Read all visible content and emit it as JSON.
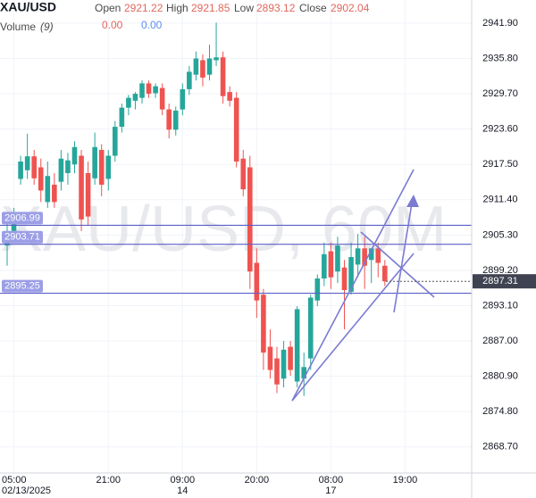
{
  "header": {
    "symbol": "XAU/USD",
    "fields": [
      {
        "label": "Open",
        "value": "2921.22"
      },
      {
        "label": "High",
        "value": "2921.85"
      },
      {
        "label": "Low",
        "value": "2893.12"
      },
      {
        "label": "Close",
        "value": "2902.04"
      }
    ],
    "volume_label": "Volume",
    "volume_param": "(9)",
    "volume_values": [
      "0.00",
      "0.00"
    ]
  },
  "chart_data": {
    "type": "candlestick",
    "watermark": "XAU/USD, 60M",
    "categories": [
      null,
      "05:00",
      null,
      null,
      null,
      null,
      null,
      null,
      null,
      null,
      null,
      null,
      null,
      null,
      null,
      "21:00",
      null,
      null,
      null,
      null,
      null,
      null,
      null,
      null,
      null,
      null,
      "09:00",
      null,
      null,
      null,
      null,
      null,
      null,
      null,
      null,
      null,
      null,
      "20:00",
      null,
      null,
      null,
      null,
      null,
      null,
      null,
      null,
      null,
      null,
      "08:00",
      null,
      null,
      null,
      null,
      null,
      null,
      null,
      null,
      null,
      null,
      "19:00"
    ],
    "date_labels": [
      null,
      "02/13/2025",
      null,
      null,
      null,
      null,
      null,
      null,
      null,
      null,
      null,
      null,
      null,
      null,
      null,
      null,
      null,
      null,
      null,
      null,
      null,
      null,
      null,
      null,
      null,
      null,
      "14",
      null,
      null,
      null,
      null,
      null,
      null,
      null,
      null,
      null,
      null,
      null,
      null,
      null,
      null,
      null,
      null,
      null,
      null,
      null,
      null,
      null,
      "17",
      null,
      null,
      null,
      null,
      null,
      null,
      null,
      null,
      null,
      null,
      null
    ],
    "open": [
      2903.5,
      2906,
      2915,
      2916.5,
      2918.9,
      2917,
      2911,
      2914,
      2914.5,
      2916,
      2917.5,
      2919,
      2916,
      2915.1,
      2920,
      2915,
      2919,
      2924,
      2927.3,
      2928.5,
      2929,
      2931.5,
      2929.8,
      2930.7,
      2927,
      2923.5,
      2927,
      2930.5,
      2933,
      2935.5,
      2933,
      2935.5,
      2936,
      2930,
      2929,
      2918.5,
      2917,
      2900.5,
      2895,
      2886,
      2884,
      2880.5,
      2886,
      2880,
      2880.5,
      2884,
      2894,
      2897.8,
      2902.5,
      2899,
      2899.7,
      2895.5,
      2900.2,
      2903,
      2901,
      2903,
      2900,
      null,
      null,
      null
    ],
    "high": [
      2907.4,
      2910,
      2919,
      2922.8,
      2920,
      2918.5,
      2918,
      2916,
      2920,
      2919.5,
      2921.5,
      2920,
      2918,
      2923,
      2921,
      2920,
      2925,
      2928,
      2929.5,
      2930,
      2932,
      2932,
      2931.5,
      2931.5,
      2928,
      2927.5,
      2931.5,
      2934.5,
      2937,
      2936.5,
      2938.2,
      2942,
      2937,
      2931,
      2930,
      2920,
      2919,
      2903,
      2896,
      2889,
      2886,
      2887,
      2887,
      2893,
      2885,
      2895,
      2898.5,
      2904,
      2904,
      2905,
      2901,
      2904,
      2905.5,
      2905,
      2903,
      2904,
      2901,
      null,
      null,
      null
    ],
    "low": [
      2900,
      2904,
      2914,
      2915,
      2914,
      2911,
      2910,
      2910,
      2913,
      2914,
      2916,
      2906,
      2907,
      2914,
      2912,
      2913,
      2918,
      2923,
      2926,
      2927,
      2928,
      2929,
      2929,
      2926,
      2922,
      2922.5,
      2926,
      2929.5,
      2932,
      2931,
      2932,
      2934.5,
      2928,
      2927.5,
      2917,
      2912,
      2896,
      2891,
      2882,
      2880.5,
      2878,
      2879,
      2881,
      2879,
      2877.5,
      2882,
      2893,
      2896.5,
      2896,
      2897,
      2889,
      2895,
      2898,
      2896,
      2897,
      2898,
      2896.5,
      null,
      null,
      null
    ],
    "close": [
      2906,
      2908.5,
      2918,
      2918.9,
      2915.1,
      2913,
      2915.5,
      2911,
      2918.5,
      2918.2,
      2920.5,
      2908,
      2908.5,
      2920.5,
      2914,
      2919,
      2924,
      2927.3,
      2929,
      2929.7,
      2931.5,
      2929.7,
      2931,
      2927,
      2923.5,
      2926.8,
      2930.5,
      2933.5,
      2935.8,
      2932.5,
      2935.8,
      2936,
      2929.3,
      2928.5,
      2918,
      2913.2,
      2899,
      2894,
      2885,
      2882,
      2879.5,
      2885.5,
      2882,
      2892.5,
      2882.5,
      2894.5,
      2897.8,
      2902,
      2898,
      2903.5,
      2895.8,
      2901.5,
      2903,
      2900,
      2903,
      2900.5,
      2897.31,
      null,
      null,
      null
    ],
    "up_color": "#26a69a",
    "down_color": "#ef5350",
    "ylim": [
      2864.2,
      2945.9
    ],
    "yticks": [
      {
        "value": 2941.9,
        "label": "2941.90"
      },
      {
        "value": 2935.8,
        "label": "2935.80"
      },
      {
        "value": 2929.7,
        "label": "2929.70"
      },
      {
        "value": 2923.6,
        "label": "2923.60"
      },
      {
        "value": 2917.5,
        "label": "2917.50"
      },
      {
        "value": 2911.4,
        "label": "2911.40"
      },
      {
        "value": 2905.3,
        "label": "2905.30"
      },
      {
        "value": 2899.2,
        "label": "2899.20"
      },
      {
        "value": 2893.1,
        "label": "2893.10"
      },
      {
        "value": 2887,
        "label": "2887.00"
      },
      {
        "value": 2880.9,
        "label": "2880.90"
      },
      {
        "value": 2874.8,
        "label": "2874.80"
      },
      {
        "value": 2868.7,
        "label": "2868.70"
      }
    ],
    "grid": true,
    "horizontal_lines": [
      2906.99,
      2903.71,
      2895.25
    ],
    "line_color": "#5b5fc7",
    "last_price": 2897.31
  }
}
